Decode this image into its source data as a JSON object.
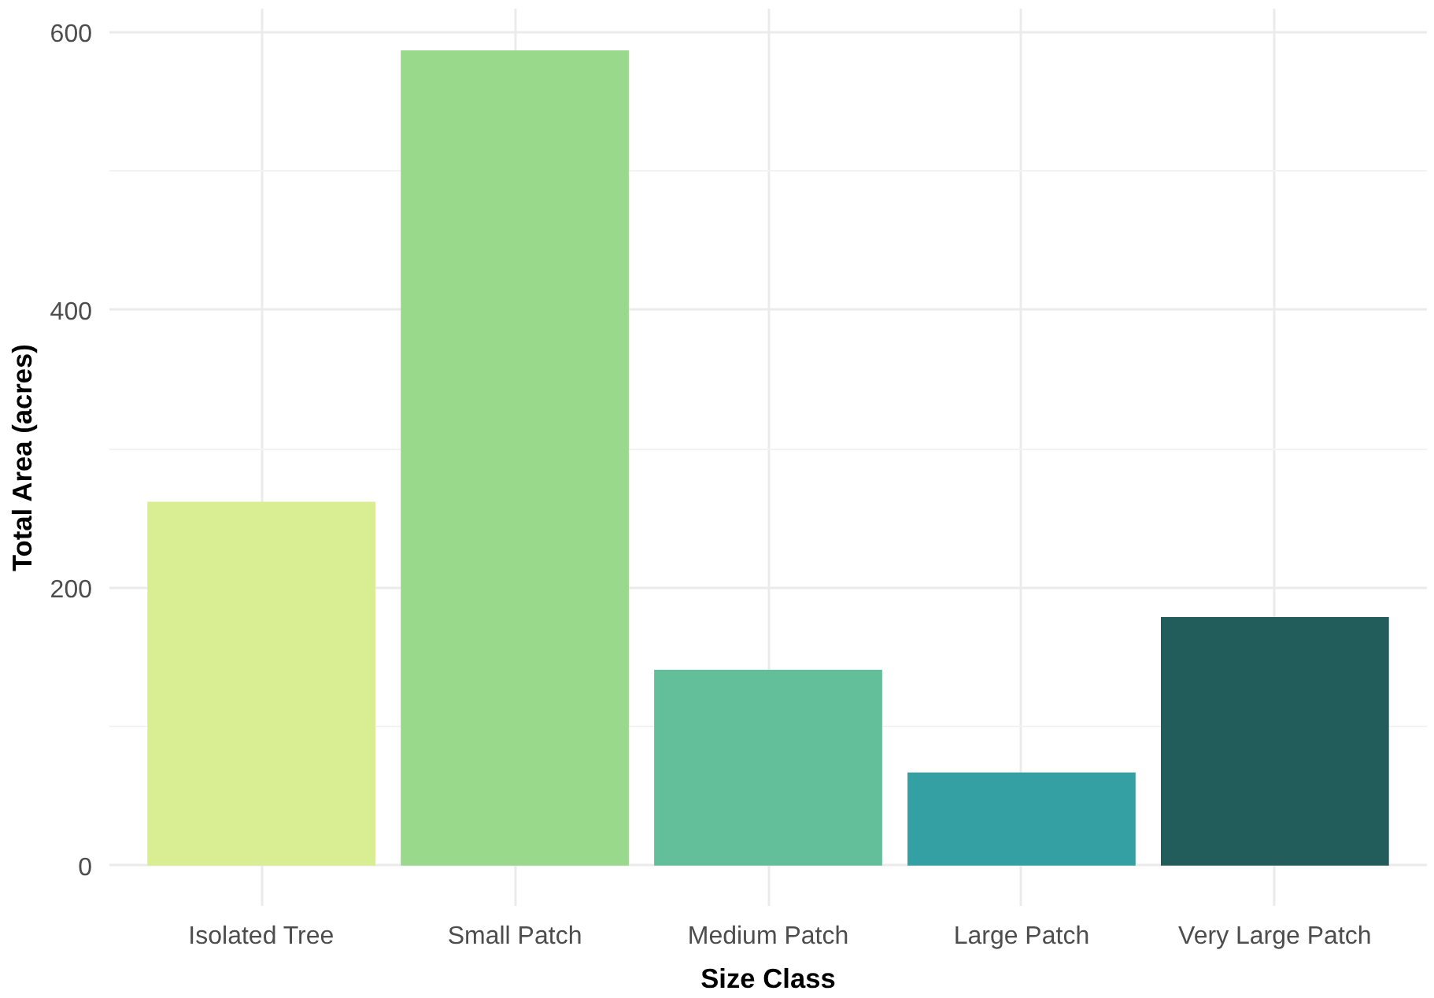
{
  "chart_data": {
    "type": "bar",
    "xlabel": "Size Class",
    "ylabel": "Total Area (acres)",
    "categories": [
      "Isolated Tree",
      "Small Patch",
      "Medium Patch",
      "Large Patch",
      "Very Large Patch"
    ],
    "values": [
      262,
      587,
      141,
      67,
      179
    ],
    "colors": [
      "#d9ed92",
      "#99d98c",
      "#62bf99",
      "#34a0a4",
      "#225c5b"
    ],
    "ylim": [
      -29,
      617
    ],
    "yticks": [
      0,
      200,
      400,
      600
    ],
    "grid": true
  }
}
